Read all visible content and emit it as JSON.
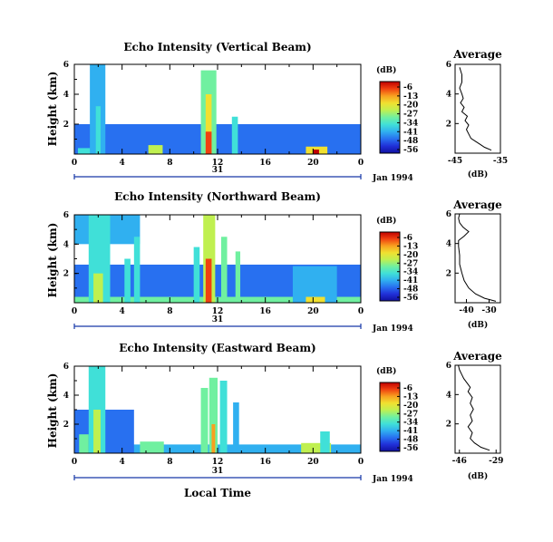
{
  "figure": {
    "x_axis_title": "Local Time",
    "date_label": "Jan 1994",
    "day_label": "31",
    "colorbar_unit": "(dB)",
    "colorbar_ticks": [
      "-6",
      "-13",
      "-20",
      "-27",
      "-34",
      "-41",
      "-48",
      "-56"
    ],
    "colorscale": [
      "#1010a0",
      "#2030d8",
      "#2870f0",
      "#30b0f0",
      "#40e0d8",
      "#70f0a0",
      "#c0f050",
      "#f0e030",
      "#f8a020",
      "#f04010",
      "#c00000"
    ],
    "avg_title": "Average",
    "avg_xunit": "(dB)"
  },
  "chart_data": [
    {
      "type": "heatmap",
      "title": "Echo Intensity (Vertical Beam)",
      "ylabel": "Height (km)",
      "x_ticks": [
        "0",
        "4",
        "8",
        "12",
        "16",
        "20",
        "0"
      ],
      "xlim": [
        0,
        24
      ],
      "y_ticks": [
        "6",
        "4",
        "2"
      ],
      "ylim": [
        0,
        6
      ],
      "colorbar_range_db": [
        -56,
        -6
      ],
      "features": [
        {
          "t_start": 0.0,
          "t_end": 24.0,
          "h_start": 0.0,
          "h_end": 2.0,
          "db": -44
        },
        {
          "t_start": 0.3,
          "t_end": 1.6,
          "h_start": 0.0,
          "h_end": 0.4,
          "db": -34
        },
        {
          "t_start": 1.3,
          "t_end": 2.6,
          "h_start": 0.0,
          "h_end": 6.0,
          "db": -43
        },
        {
          "t_start": 1.8,
          "t_end": 2.2,
          "h_start": 0.0,
          "h_end": 3.2,
          "db": -35
        },
        {
          "t_start": 6.2,
          "t_end": 7.4,
          "h_start": 0.0,
          "h_end": 0.6,
          "db": -28
        },
        {
          "t_start": 10.6,
          "t_end": 11.9,
          "h_start": 0.0,
          "h_end": 5.6,
          "db": -33
        },
        {
          "t_start": 11.0,
          "t_end": 11.5,
          "h_start": 0.0,
          "h_end": 4.0,
          "db": -20
        },
        {
          "t_start": 11.0,
          "t_end": 11.5,
          "h_start": 0.0,
          "h_end": 1.5,
          "db": -13
        },
        {
          "t_start": 13.2,
          "t_end": 13.7,
          "h_start": 0.0,
          "h_end": 2.5,
          "db": -37
        },
        {
          "t_start": 19.4,
          "t_end": 21.2,
          "h_start": 0.0,
          "h_end": 0.5,
          "db": -22
        },
        {
          "t_start": 20.0,
          "t_end": 20.5,
          "h_start": 0.0,
          "h_end": 0.3,
          "db": -8
        }
      ]
    },
    {
      "type": "heatmap",
      "title": "Echo Intensity (Northward Beam)",
      "ylabel": "Height (km)",
      "x_ticks": [
        "0",
        "4",
        "8",
        "12",
        "16",
        "20",
        "0"
      ],
      "xlim": [
        0,
        24
      ],
      "y_ticks": [
        "6",
        "4",
        "2"
      ],
      "ylim": [
        0,
        6
      ],
      "colorbar_range_db": [
        -56,
        -6
      ],
      "features": [
        {
          "t_start": 0.0,
          "t_end": 24.0,
          "h_start": 0.0,
          "h_end": 2.6,
          "db": -44
        },
        {
          "t_start": 0.0,
          "t_end": 24.0,
          "h_start": 0.0,
          "h_end": 0.4,
          "db": -32
        },
        {
          "t_start": 0.0,
          "t_end": 5.5,
          "h_start": 4.0,
          "h_end": 6.0,
          "db": -41
        },
        {
          "t_start": 1.2,
          "t_end": 3.0,
          "h_start": 0.0,
          "h_end": 6.0,
          "db": -36
        },
        {
          "t_start": 1.6,
          "t_end": 2.4,
          "h_start": 0.0,
          "h_end": 2.0,
          "db": -27
        },
        {
          "t_start": 4.2,
          "t_end": 4.7,
          "h_start": 0.0,
          "h_end": 3.0,
          "db": -38
        },
        {
          "t_start": 5.0,
          "t_end": 5.5,
          "h_start": 0.0,
          "h_end": 4.5,
          "db": -38
        },
        {
          "t_start": 10.0,
          "t_end": 10.5,
          "h_start": 0.0,
          "h_end": 3.8,
          "db": -35
        },
        {
          "t_start": 10.8,
          "t_end": 11.8,
          "h_start": 0.0,
          "h_end": 6.0,
          "db": -25
        },
        {
          "t_start": 11.0,
          "t_end": 11.5,
          "h_start": 0.0,
          "h_end": 3.0,
          "db": -10
        },
        {
          "t_start": 12.3,
          "t_end": 12.8,
          "h_start": 0.0,
          "h_end": 4.5,
          "db": -33
        },
        {
          "t_start": 13.5,
          "t_end": 13.9,
          "h_start": 0.0,
          "h_end": 3.5,
          "db": -33
        },
        {
          "t_start": 18.3,
          "t_end": 22.0,
          "h_start": 0.0,
          "h_end": 2.5,
          "db": -42
        },
        {
          "t_start": 19.4,
          "t_end": 21.0,
          "h_start": 0.0,
          "h_end": 0.4,
          "db": -20
        }
      ]
    },
    {
      "type": "heatmap",
      "title": "Echo Intensity (Eastward Beam)",
      "ylabel": "Height (km)",
      "x_ticks": [
        "0",
        "4",
        "8",
        "12",
        "16",
        "20",
        "0"
      ],
      "xlim": [
        0,
        24
      ],
      "y_ticks": [
        "6",
        "4",
        "2"
      ],
      "ylim": [
        0,
        6
      ],
      "colorbar_range_db": [
        -56,
        -6
      ],
      "features": [
        {
          "t_start": 0.0,
          "t_end": 24.0,
          "h_start": 0.0,
          "h_end": 0.6,
          "db": -42
        },
        {
          "t_start": 0.0,
          "t_end": 5.0,
          "h_start": 0.0,
          "h_end": 3.0,
          "db": -46
        },
        {
          "t_start": 0.4,
          "t_end": 1.2,
          "h_start": 0.0,
          "h_end": 1.3,
          "db": -30
        },
        {
          "t_start": 1.2,
          "t_end": 2.6,
          "h_start": 0.0,
          "h_end": 6.0,
          "db": -38
        },
        {
          "t_start": 1.6,
          "t_end": 2.2,
          "h_start": 0.0,
          "h_end": 3.0,
          "db": -25
        },
        {
          "t_start": 5.5,
          "t_end": 7.5,
          "h_start": 0.0,
          "h_end": 0.8,
          "db": -30
        },
        {
          "t_start": 10.6,
          "t_end": 11.2,
          "h_start": 0.0,
          "h_end": 4.5,
          "db": -33
        },
        {
          "t_start": 11.3,
          "t_end": 12.0,
          "h_start": 0.0,
          "h_end": 5.2,
          "db": -30
        },
        {
          "t_start": 11.5,
          "t_end": 11.8,
          "h_start": 0.0,
          "h_end": 2.0,
          "db": -16
        },
        {
          "t_start": 12.2,
          "t_end": 12.8,
          "h_start": 0.0,
          "h_end": 5.0,
          "db": -36
        },
        {
          "t_start": 13.3,
          "t_end": 13.8,
          "h_start": 0.0,
          "h_end": 3.5,
          "db": -40
        },
        {
          "t_start": 19.0,
          "t_end": 21.5,
          "h_start": 0.0,
          "h_end": 0.7,
          "db": -25
        },
        {
          "t_start": 20.6,
          "t_end": 21.4,
          "h_start": 0.0,
          "h_end": 1.5,
          "db": -34
        }
      ]
    },
    {
      "type": "line",
      "title": "Average",
      "xlabel": "(dB)",
      "x_ticks": [
        "-45",
        "-35"
      ],
      "xlim": [
        -45,
        -35
      ],
      "y_ticks": [
        "6",
        "4",
        "2"
      ],
      "ylim": [
        0,
        6
      ],
      "x": [
        -37,
        -38.5,
        -39.5,
        -40.5,
        -41.5,
        -42,
        -42.5,
        -42,
        -42.8,
        -42.3,
        -43.5,
        -43,
        -43.8,
        -43.2,
        -43.5,
        -44,
        -43.5,
        -43.5,
        -44
      ],
      "y": [
        0.2,
        0.4,
        0.6,
        0.8,
        1.0,
        1.3,
        1.6,
        1.9,
        2.2,
        2.5,
        2.8,
        3.1,
        3.4,
        3.7,
        4.0,
        4.4,
        4.8,
        5.3,
        5.8
      ]
    },
    {
      "type": "line",
      "title": "Average",
      "xlabel": "(dB)",
      "x_ticks": [
        "-40",
        "-30"
      ],
      "xlim": [
        -45,
        -25
      ],
      "y_ticks": [
        "6",
        "4",
        "2"
      ],
      "ylim": [
        0,
        6
      ],
      "x": [
        -27,
        -32,
        -36,
        -39,
        -41,
        -42,
        -43,
        -43,
        -43.5,
        -43.5,
        -41,
        -39,
        -41.5,
        -43,
        -43.5,
        -43
      ],
      "y": [
        0.1,
        0.3,
        0.6,
        1.0,
        1.5,
        2.0,
        2.6,
        3.2,
        3.8,
        4.2,
        4.5,
        4.8,
        5.1,
        5.4,
        5.7,
        6.0
      ]
    },
    {
      "type": "line",
      "title": "Average",
      "xlabel": "(dB)",
      "x_ticks": [
        "-46",
        "-29"
      ],
      "xlim": [
        -48,
        -27
      ],
      "y_ticks": [
        "6",
        "4",
        "2"
      ],
      "ylim": [
        0,
        6
      ],
      "x": [
        -32,
        -36,
        -39,
        -41,
        -40,
        -42,
        -40,
        -41,
        -39.5,
        -41,
        -40,
        -42,
        -41,
        -42.5,
        -44,
        -45,
        -46,
        -46.5
      ],
      "y": [
        0.2,
        0.4,
        0.7,
        1.0,
        1.4,
        1.8,
        2.2,
        2.6,
        3.0,
        3.4,
        3.8,
        4.2,
        4.5,
        4.8,
        5.1,
        5.4,
        5.7,
        6.0
      ]
    }
  ]
}
